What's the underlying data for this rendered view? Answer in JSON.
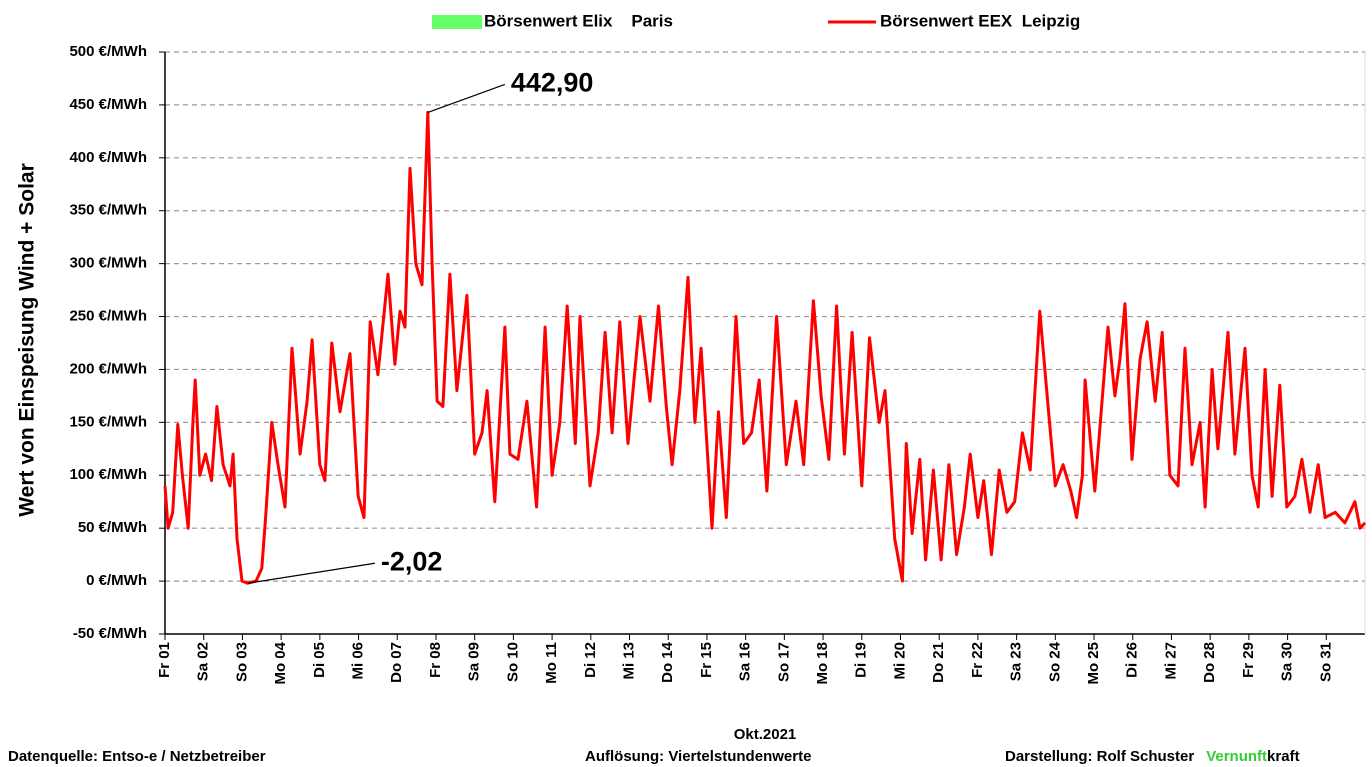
{
  "chart_data": {
    "type": "line",
    "y_label": "Wert von Einspeisung Wind + Solar",
    "x_label": "Okt.2021",
    "series": [
      {
        "name": "Börsenwert Elix    Paris",
        "color": "#66ff66",
        "style": "patch"
      },
      {
        "name": "Börsenwert EEX  Leipzig",
        "color": "#ff0000",
        "style": "line",
        "x": [
          1.0,
          1.08,
          1.2,
          1.33,
          1.45,
          1.6,
          1.72,
          1.78,
          1.9,
          2.05,
          2.2,
          2.34,
          2.5,
          2.68,
          2.76,
          2.86,
          2.99,
          3.14,
          3.35,
          3.5,
          3.6,
          3.76,
          3.92,
          4.1,
          4.28,
          4.49,
          4.67,
          4.8,
          5.0,
          5.13,
          5.31,
          5.52,
          5.78,
          5.99,
          6.14,
          6.3,
          6.5,
          6.76,
          6.94,
          7.07,
          7.2,
          7.33,
          7.48,
          7.64,
          7.79,
          7.9,
          8.03,
          8.18,
          8.36,
          8.54,
          8.8,
          9.0,
          9.19,
          9.32,
          9.52,
          9.78,
          9.91,
          10.12,
          10.35,
          10.6,
          10.82,
          11.0,
          11.2,
          11.39,
          11.6,
          11.72,
          11.98,
          12.19,
          12.37,
          12.55,
          12.75,
          12.96,
          13.27,
          13.53,
          13.75,
          13.95,
          14.1,
          14.3,
          14.51,
          14.69,
          14.85,
          15.13,
          15.3,
          15.5,
          15.75,
          15.95,
          16.15,
          16.35,
          16.55,
          16.8,
          17.05,
          17.3,
          17.5,
          17.75,
          17.95,
          18.15,
          18.35,
          18.55,
          18.75,
          19.0,
          19.2,
          19.45,
          19.6,
          19.85,
          20.05,
          20.15,
          20.3,
          20.5,
          20.65,
          20.85,
          21.05,
          21.25,
          21.45,
          21.65,
          21.8,
          22.0,
          22.15,
          22.35,
          22.55,
          22.75,
          22.95,
          23.15,
          23.35,
          23.6,
          23.85,
          24.0,
          24.2,
          24.4,
          24.55,
          24.7,
          24.77,
          25.02,
          25.36,
          25.54,
          25.67,
          25.8,
          25.98,
          26.19,
          26.37,
          26.58,
          26.76,
          26.96,
          27.17,
          27.35,
          27.53,
          27.74,
          27.87,
          28.05,
          28.2,
          28.46,
          28.64,
          28.9,
          29.08,
          29.24,
          29.42,
          29.6,
          29.8,
          29.98,
          30.19,
          30.37,
          30.58,
          30.79,
          30.97,
          31.23,
          31.48,
          31.74,
          31.87,
          32.0
        ],
        "values": [
          90,
          50,
          65,
          148,
          100,
          50,
          150,
          190,
          100,
          120,
          95,
          165,
          110,
          90,
          120,
          40,
          0,
          -2.02,
          0,
          12,
          60,
          150,
          110,
          70,
          220,
          120,
          170,
          228,
          110,
          95,
          225,
          160,
          215,
          80,
          60,
          245,
          195,
          290,
          205,
          255,
          240,
          390,
          300,
          280,
          442.9,
          300,
          170,
          165,
          290,
          180,
          270,
          120,
          140,
          180,
          75,
          240,
          120,
          115,
          170,
          70,
          240,
          100,
          150,
          260,
          130,
          250,
          90,
          140,
          235,
          140,
          245,
          130,
          250,
          170,
          260,
          165,
          110,
          180,
          287,
          150,
          220,
          50,
          160,
          60,
          250,
          130,
          140,
          190,
          85,
          250,
          110,
          170,
          110,
          265,
          175,
          115,
          260,
          120,
          235,
          90,
          230,
          150,
          180,
          40,
          0,
          130,
          45,
          115,
          20,
          105,
          20,
          110,
          25,
          70,
          120,
          60,
          95,
          25,
          105,
          65,
          75,
          140,
          105,
          255,
          150,
          90,
          110,
          85,
          60,
          100,
          190,
          85,
          240,
          175,
          210,
          262,
          115,
          210,
          245,
          170,
          235,
          100,
          90,
          220,
          110,
          150,
          70,
          200,
          125,
          235,
          120,
          220,
          100,
          70,
          200,
          80,
          185,
          70,
          80,
          115,
          65,
          110,
          60,
          65,
          55,
          75,
          50,
          55
        ]
      }
    ],
    "xlim": [
      1,
      32
    ],
    "xticks": [
      {
        "value": 1,
        "label": "Fr 01"
      },
      {
        "value": 2,
        "label": "Sa 02"
      },
      {
        "value": 3,
        "label": "So 03"
      },
      {
        "value": 4,
        "label": "Mo 04"
      },
      {
        "value": 5,
        "label": "Di 05"
      },
      {
        "value": 6,
        "label": "Mi 06"
      },
      {
        "value": 7,
        "label": "Do 07"
      },
      {
        "value": 8,
        "label": "Fr 08"
      },
      {
        "value": 9,
        "label": "Sa 09"
      },
      {
        "value": 10,
        "label": "So 10"
      },
      {
        "value": 11,
        "label": "Mo 11"
      },
      {
        "value": 12,
        "label": "Di 12"
      },
      {
        "value": 13,
        "label": "Mi 13"
      },
      {
        "value": 14,
        "label": "Do 14"
      },
      {
        "value": 15,
        "label": "Fr 15"
      },
      {
        "value": 16,
        "label": "Sa 16"
      },
      {
        "value": 17,
        "label": "So 17"
      },
      {
        "value": 18,
        "label": "Mo 18"
      },
      {
        "value": 19,
        "label": "Di 19"
      },
      {
        "value": 20,
        "label": "Mi 20"
      },
      {
        "value": 21,
        "label": "Do 21"
      },
      {
        "value": 22,
        "label": "Fr 22"
      },
      {
        "value": 23,
        "label": "Sa 23"
      },
      {
        "value": 24,
        "label": "So 24"
      },
      {
        "value": 25,
        "label": "Mo 25"
      },
      {
        "value": 26,
        "label": "Di 26"
      },
      {
        "value": 27,
        "label": "Mi 27"
      },
      {
        "value": 28,
        "label": "Do 28"
      },
      {
        "value": 29,
        "label": "Fr 29"
      },
      {
        "value": 30,
        "label": "Sa 30"
      },
      {
        "value": 31,
        "label": "So 31"
      }
    ],
    "ylim": [
      -50,
      500
    ],
    "yticks": [
      {
        "value": -50,
        "label": "-50 €/MWh"
      },
      {
        "value": 0,
        "label": "0 €/MWh"
      },
      {
        "value": 50,
        "label": "50 €/MWh"
      },
      {
        "value": 100,
        "label": "100 €/MWh"
      },
      {
        "value": 150,
        "label": "150 €/MWh"
      },
      {
        "value": 200,
        "label": "200 €/MWh"
      },
      {
        "value": 250,
        "label": "250 €/MWh"
      },
      {
        "value": 300,
        "label": "300 €/MWh"
      },
      {
        "value": 350,
        "label": "350 €/MWh"
      },
      {
        "value": 400,
        "label": "400 €/MWh"
      },
      {
        "value": 450,
        "label": "450 €/MWh"
      },
      {
        "value": 500,
        "label": "500 €/MWh"
      }
    ],
    "negative_tick_color": "#ff0000",
    "grid": true,
    "legend_position": "top",
    "annotations": [
      {
        "text": "442,90",
        "x": 7.79,
        "y": 442.9
      },
      {
        "text": "-2,02",
        "x": 3.14,
        "y": -2.02
      }
    ],
    "footer": {
      "source": "Datenquelle:  Entso-e  / Netzbetreiber",
      "resolution": "Auflösung: Viertelstundenwerte",
      "author": "Darstellung:  Rolf Schuster",
      "brand_1": "Vernunft",
      "brand_2": "kraft",
      "brand_1_color": "#33cc33"
    }
  }
}
